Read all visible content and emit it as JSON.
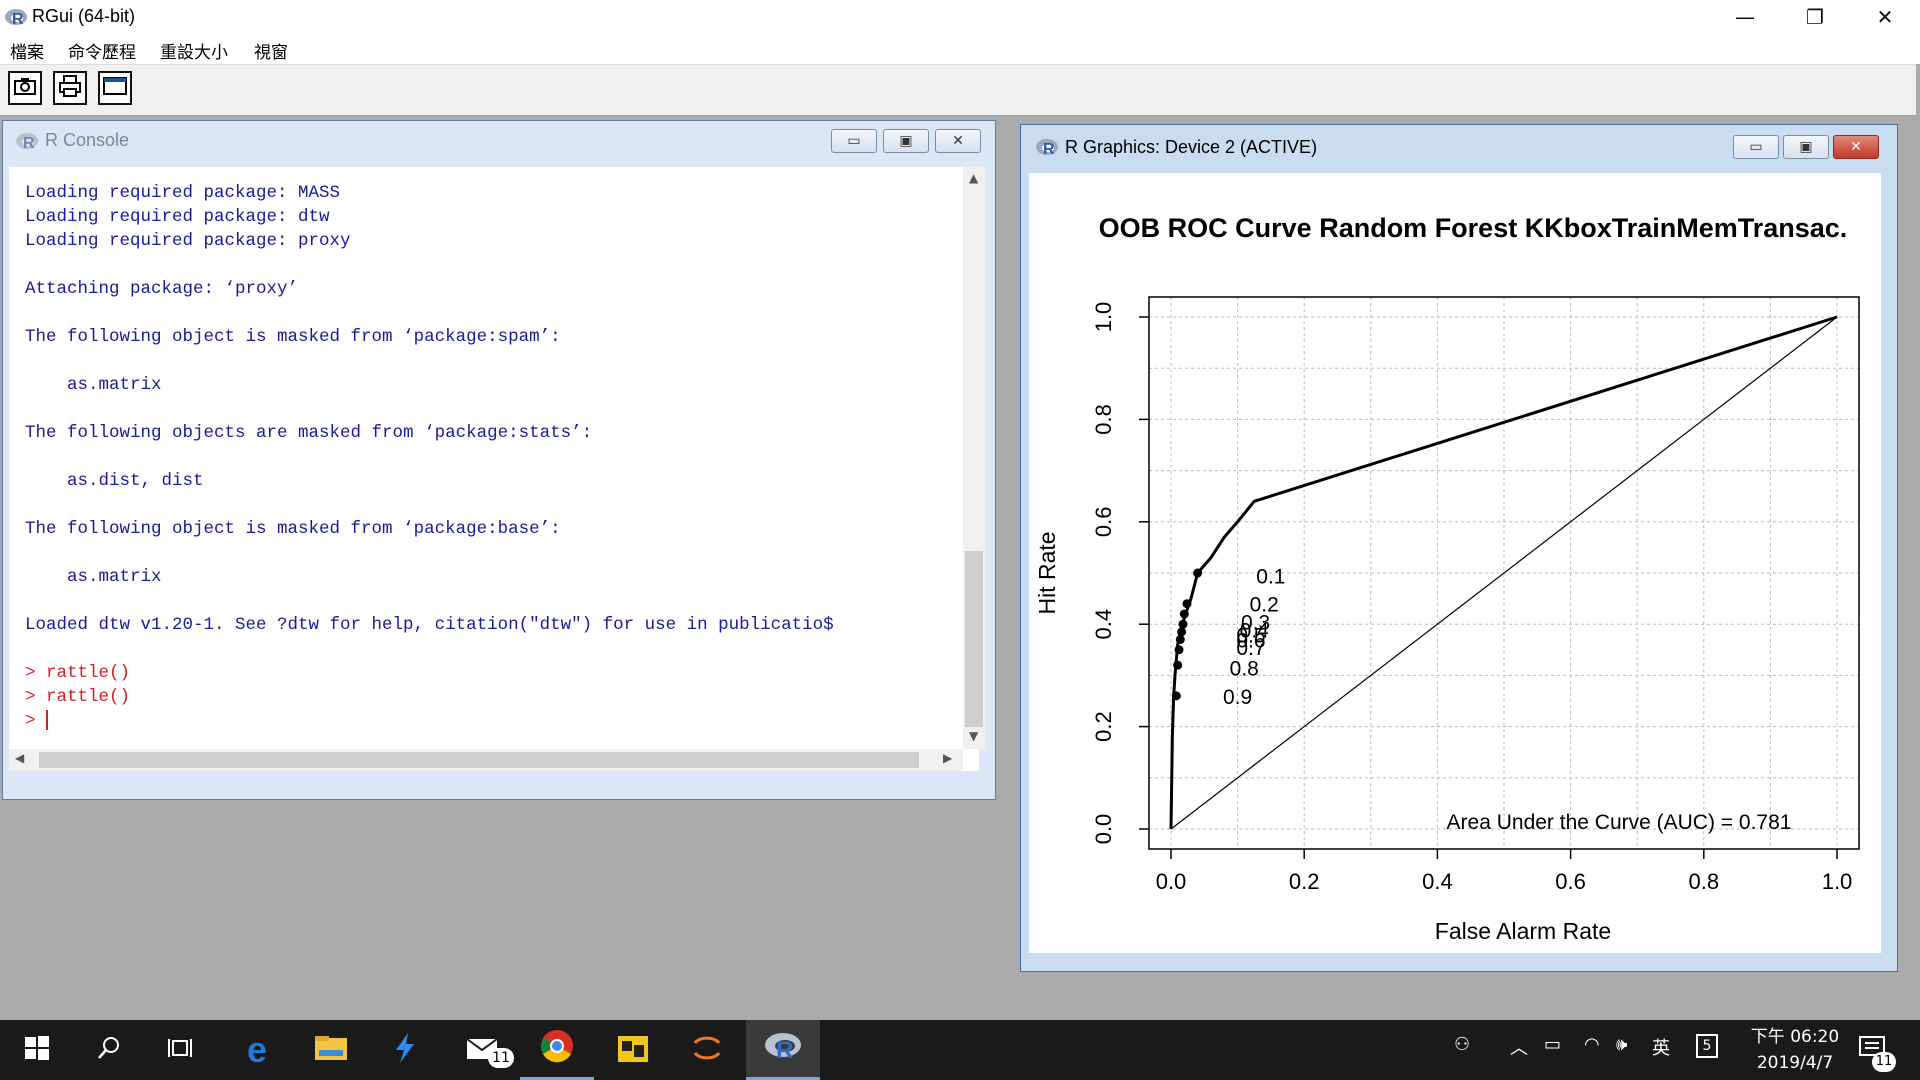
{
  "app": {
    "title": "RGui (64-bit)"
  },
  "window_controls": {
    "minimize": "—",
    "restore": "❐",
    "close": "✕"
  },
  "menu": [
    "檔案",
    "命令歷程",
    "重設大小",
    "視窗"
  ],
  "toolbar": {
    "buttons": [
      "camera-icon",
      "printer-icon",
      "window-icon"
    ]
  },
  "console": {
    "title": "R Console",
    "lines": [
      {
        "text": "Loading required package: MASS",
        "kind": "output"
      },
      {
        "text": "Loading required package: dtw",
        "kind": "output"
      },
      {
        "text": "Loading required package: proxy",
        "kind": "output"
      },
      {
        "text": "",
        "kind": "output"
      },
      {
        "text": "Attaching package: ‘proxy’",
        "kind": "output"
      },
      {
        "text": "",
        "kind": "output"
      },
      {
        "text": "The following object is masked from ‘package:spam’:",
        "kind": "output"
      },
      {
        "text": "",
        "kind": "output"
      },
      {
        "text": "    as.matrix",
        "kind": "output"
      },
      {
        "text": "",
        "kind": "output"
      },
      {
        "text": "The following objects are masked from ‘package:stats’:",
        "kind": "output"
      },
      {
        "text": "",
        "kind": "output"
      },
      {
        "text": "    as.dist, dist",
        "kind": "output"
      },
      {
        "text": "",
        "kind": "output"
      },
      {
        "text": "The following object is masked from ‘package:base’:",
        "kind": "output"
      },
      {
        "text": "",
        "kind": "output"
      },
      {
        "text": "    as.matrix",
        "kind": "output"
      },
      {
        "text": "",
        "kind": "output"
      },
      {
        "text": "Loaded dtw v1.20-1. See ?dtw for help, citation(\"dtw\") for use in publicatio$",
        "kind": "output"
      },
      {
        "text": "",
        "kind": "output"
      },
      {
        "text": "> rattle()",
        "kind": "input"
      },
      {
        "text": "> rattle()",
        "kind": "input"
      },
      {
        "text": "> ",
        "kind": "prompt"
      }
    ]
  },
  "graphics": {
    "title": "R Graphics: Device 2 (ACTIVE)"
  },
  "chart_data": {
    "type": "line",
    "title": "OOB ROC Curve Random Forest KKboxTrainMemTransac.",
    "xlabel": "False Alarm Rate",
    "ylabel": "Hit Rate",
    "xlim": [
      0,
      1
    ],
    "ylim": [
      0,
      1
    ],
    "xticks": [
      "0.0",
      "0.2",
      "0.4",
      "0.6",
      "0.8",
      "1.0"
    ],
    "yticks": [
      "0.0",
      "0.2",
      "0.4",
      "0.6",
      "0.8",
      "1.0"
    ],
    "grid": true,
    "series": [
      {
        "x": [
          0.0,
          0.002,
          0.004,
          0.006,
          0.008,
          0.01,
          0.013,
          0.017,
          0.022,
          0.03,
          0.04,
          0.06,
          0.08,
          0.1,
          0.125,
          1.0
        ],
        "y": [
          0.0,
          0.18,
          0.26,
          0.3,
          0.33,
          0.36,
          0.38,
          0.4,
          0.42,
          0.45,
          0.5,
          0.53,
          0.57,
          0.6,
          0.64,
          1.0
        ]
      }
    ],
    "diagonal": {
      "x": [
        0,
        1
      ],
      "y": [
        0,
        1
      ]
    },
    "threshold_points": [
      {
        "x": 0.008,
        "y": 0.26,
        "label": "0.9",
        "lx": 0.1,
        "ly": 0.26
      },
      {
        "x": 0.01,
        "y": 0.32,
        "label": "0.8",
        "lx": 0.11,
        "ly": 0.315
      },
      {
        "x": 0.012,
        "y": 0.35,
        "label": "0.7",
        "lx": 0.12,
        "ly": 0.355
      },
      {
        "x": 0.014,
        "y": 0.37,
        "label": "0.6",
        "lx": 0.12,
        "ly": 0.37
      },
      {
        "x": 0.016,
        "y": 0.385,
        "label": "0.5",
        "lx": 0.12,
        "ly": 0.38
      },
      {
        "x": 0.018,
        "y": 0.4,
        "label": "0.4",
        "lx": 0.125,
        "ly": 0.39
      },
      {
        "x": 0.02,
        "y": 0.42,
        "label": "0.3",
        "lx": 0.127,
        "ly": 0.405
      },
      {
        "x": 0.024,
        "y": 0.44,
        "label": "0.2",
        "lx": 0.14,
        "ly": 0.44
      },
      {
        "x": 0.04,
        "y": 0.5,
        "label": "0.1",
        "lx": 0.15,
        "ly": 0.495
      }
    ],
    "annotation": "Area Under the Curve (AUC) = 0.781"
  },
  "taskbar": {
    "apps": [
      "start-icon",
      "search-icon",
      "task-view-icon",
      "edge-icon",
      "file-explorer-icon",
      "visual-studio-icon",
      "mail-icon",
      "chrome-icon",
      "app-icon",
      "jupyter-icon",
      "r-icon"
    ],
    "mail_badge": "11",
    "ime": "英",
    "time": "下午 06:20",
    "date": "2019/4/7",
    "notification_badge": "11"
  }
}
